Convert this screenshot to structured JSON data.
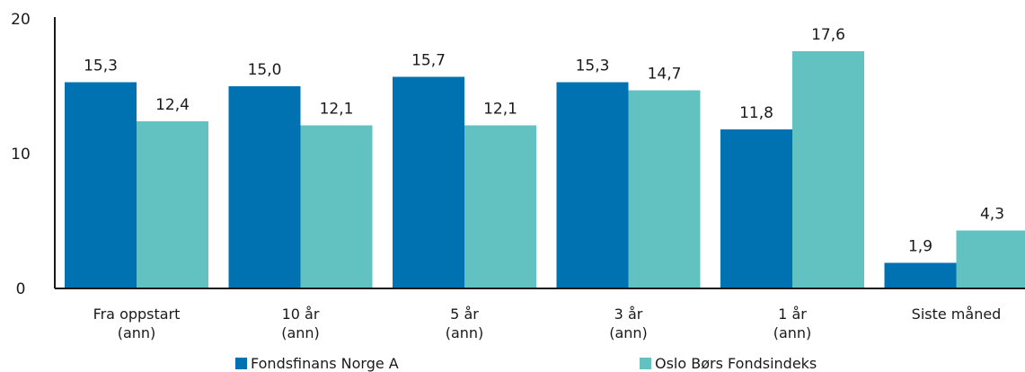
{
  "chart_data": {
    "type": "bar",
    "categories": [
      [
        "Fra oppstart",
        "(ann)"
      ],
      [
        "10 år",
        "(ann)"
      ],
      [
        "5 år",
        "(ann)"
      ],
      [
        "3 år",
        "(ann)"
      ],
      [
        "1 år",
        "(ann)"
      ],
      [
        "Siste måned"
      ]
    ],
    "series": [
      {
        "name": "Fondsfinans Norge A",
        "values": [
          15.3,
          15.0,
          15.7,
          15.3,
          11.8,
          1.9
        ],
        "labels": [
          "15,3",
          "15,0",
          "15,7",
          "15,3",
          "11,8",
          "1,9"
        ],
        "color": "#0072B2"
      },
      {
        "name": "Oslo Børs Fondsindeks",
        "values": [
          12.4,
          12.1,
          12.1,
          14.7,
          17.6,
          4.3
        ],
        "labels": [
          "12,4",
          "12,1",
          "12,1",
          "14,7",
          "17,6",
          "4,3"
        ],
        "color": "#62C1C1"
      }
    ],
    "ylim": [
      0,
      20
    ],
    "yticks": [
      0,
      10,
      20
    ],
    "grid": false,
    "legend_position": "bottom"
  }
}
